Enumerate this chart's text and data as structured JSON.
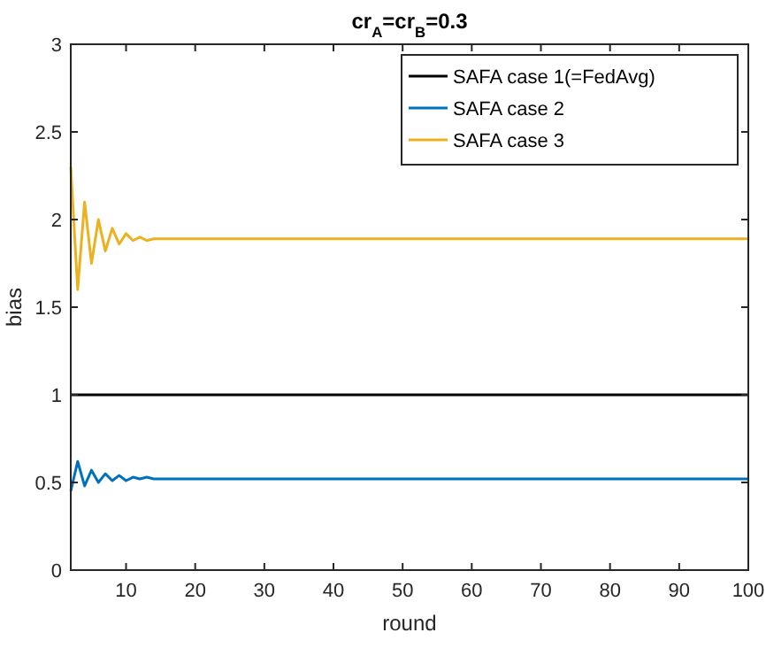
{
  "chart_data": {
    "type": "line",
    "title": "cr$_{A}$=cr$_{B}$=0.3",
    "xlabel": "round",
    "ylabel": "bias",
    "x": [
      2,
      3,
      4,
      5,
      6,
      7,
      8,
      9,
      10,
      11,
      12,
      13,
      14,
      100
    ],
    "series": [
      {
        "name": "SAFA case 1(=FedAvg)",
        "color": "#000000",
        "values": [
          1,
          1,
          1,
          1,
          1,
          1,
          1,
          1,
          1,
          1,
          1,
          1,
          1,
          1
        ]
      },
      {
        "name": "SAFA case 2",
        "color": "#0072bd",
        "values": [
          0.45,
          0.62,
          0.48,
          0.57,
          0.5,
          0.55,
          0.51,
          0.54,
          0.51,
          0.53,
          0.52,
          0.53,
          0.52,
          0.52
        ]
      },
      {
        "name": "SAFA case 3",
        "color": "#edb120",
        "values": [
          2.3,
          1.6,
          2.1,
          1.75,
          2.0,
          1.82,
          1.95,
          1.86,
          1.92,
          1.88,
          1.9,
          1.88,
          1.89,
          1.89
        ]
      }
    ],
    "xlim": [
      2,
      100
    ],
    "xticks": [
      10,
      20,
      30,
      40,
      50,
      60,
      70,
      80,
      90,
      100
    ],
    "ylim": [
      0,
      3
    ],
    "yticks": [
      0,
      0.5,
      1,
      1.5,
      2,
      2.5,
      3
    ],
    "grid": false,
    "legend": "top right"
  }
}
